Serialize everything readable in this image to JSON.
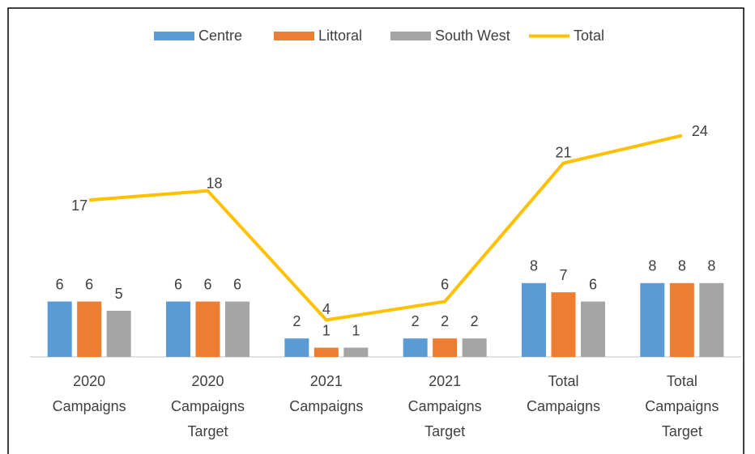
{
  "chart_data": {
    "type": "bar+line",
    "categories": [
      "2020 Campaigns",
      "2020 Campaigns Target",
      "2021 Campaigns",
      "2021 Campaigns Target",
      "Total Campaigns",
      "Total Campaigns Target"
    ],
    "series": [
      {
        "name": "Centre",
        "type": "bar",
        "color": "#5b9bd5",
        "values": [
          6,
          6,
          2,
          2,
          8,
          8
        ]
      },
      {
        "name": "Littoral",
        "type": "bar",
        "color": "#ed7d31",
        "values": [
          6,
          6,
          1,
          2,
          7,
          8
        ]
      },
      {
        "name": "South West",
        "type": "bar",
        "color": "#a5a5a5",
        "values": [
          5,
          6,
          1,
          2,
          6,
          8
        ]
      },
      {
        "name": "Total",
        "type": "line",
        "color": "#ffc000",
        "values": [
          17,
          18,
          4,
          6,
          21,
          24
        ]
      }
    ],
    "ylim": [
      0,
      25
    ],
    "grid": false,
    "legend": "top"
  }
}
